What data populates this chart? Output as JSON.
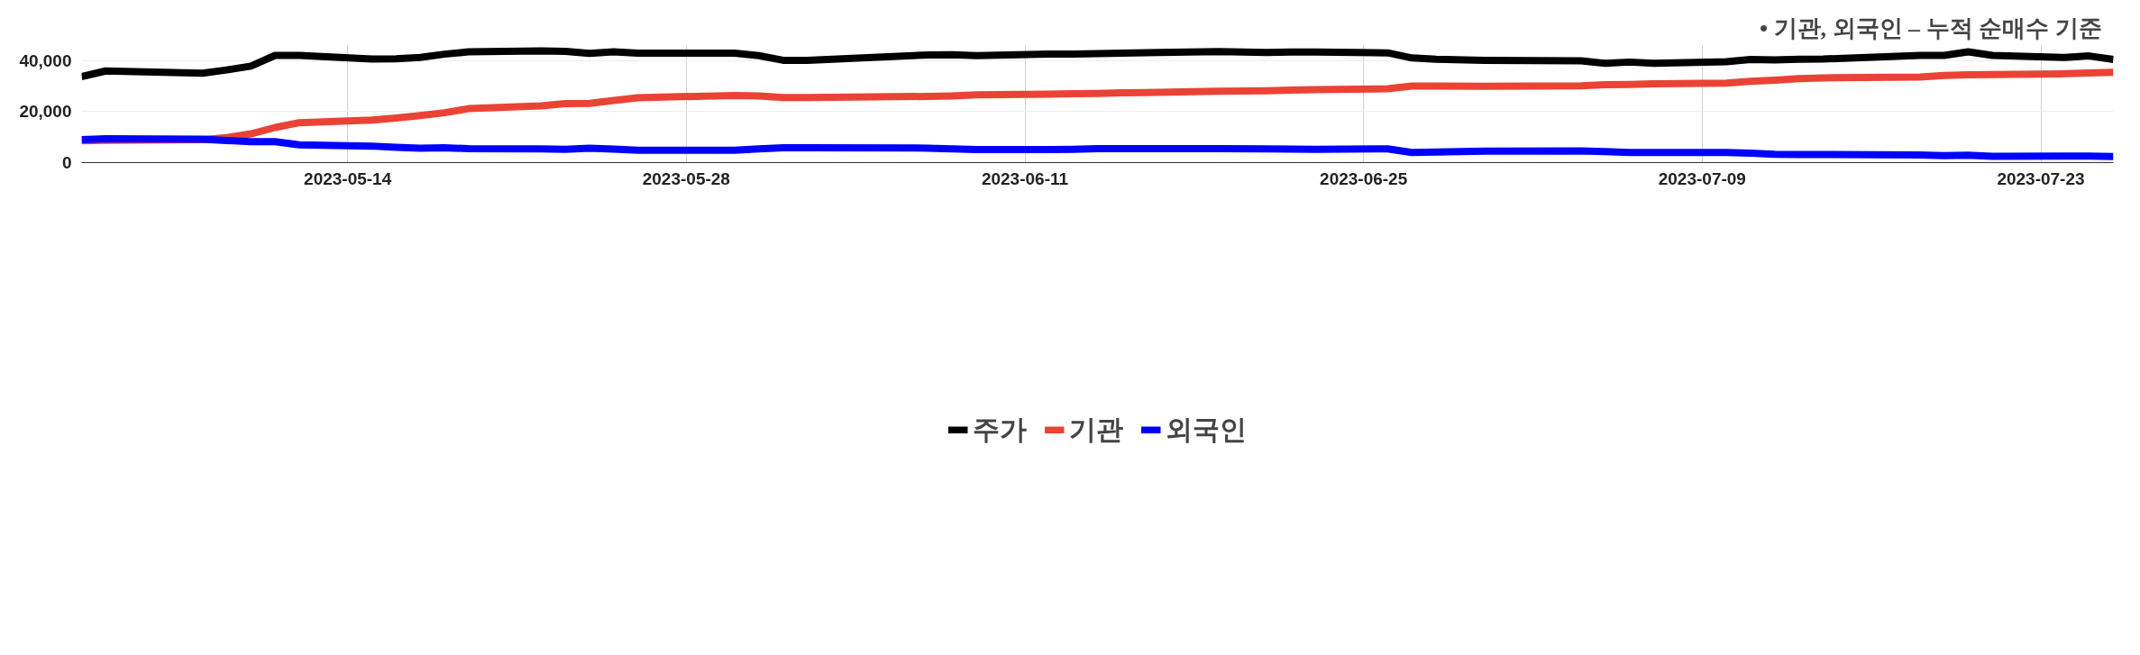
{
  "chart_data": {
    "type": "line",
    "annotations": [
      "•   기관, 외국인 – 누적 순매수 기준"
    ],
    "x": [
      "2023-05-03",
      "2023-05-04",
      "2023-05-08",
      "2023-05-09",
      "2023-05-10",
      "2023-05-11",
      "2023-05-12",
      "2023-05-15",
      "2023-05-16",
      "2023-05-17",
      "2023-05-18",
      "2023-05-19",
      "2023-05-22",
      "2023-05-23",
      "2023-05-24",
      "2023-05-25",
      "2023-05-26",
      "2023-05-30",
      "2023-05-31",
      "2023-06-01",
      "2023-06-02",
      "2023-06-07",
      "2023-06-08",
      "2023-06-09",
      "2023-06-12",
      "2023-06-13",
      "2023-06-14",
      "2023-06-15",
      "2023-06-19",
      "2023-06-21",
      "2023-06-22",
      "2023-06-23",
      "2023-06-26",
      "2023-06-27",
      "2023-06-28",
      "2023-06-30",
      "2023-07-04",
      "2023-07-05",
      "2023-07-06",
      "2023-07-07",
      "2023-07-10",
      "2023-07-11",
      "2023-07-12",
      "2023-07-13",
      "2023-07-14",
      "2023-07-18",
      "2023-07-19",
      "2023-07-20",
      "2023-07-21",
      "2023-07-24",
      "2023-07-25",
      "2023-07-26"
    ],
    "series": [
      {
        "name": "주가",
        "color": "#000000",
        "values": [
          33800,
          36000,
          35100,
          36400,
          37900,
          42100,
          42100,
          40700,
          40800,
          41300,
          42600,
          43500,
          43900,
          43700,
          42900,
          43500,
          43000,
          43000,
          42000,
          40200,
          40200,
          42300,
          42400,
          42000,
          42600,
          42600,
          42800,
          43000,
          43600,
          43300,
          43400,
          43400,
          43100,
          41100,
          40600,
          40200,
          40000,
          39000,
          39500,
          39000,
          39600,
          40500,
          40300,
          40600,
          40700,
          42100,
          42100,
          43500,
          42100,
          41300,
          41900,
          40500
        ]
      },
      {
        "name": "기관",
        "color": "#ea4335",
        "values": [
          8600,
          8800,
          9000,
          9800,
          11300,
          13800,
          15700,
          16700,
          17500,
          18500,
          19600,
          21200,
          22300,
          23200,
          23300,
          24400,
          25500,
          26400,
          26200,
          25600,
          25600,
          26000,
          26200,
          26600,
          26900,
          27100,
          27200,
          27400,
          28000,
          28200,
          28500,
          28700,
          29000,
          30100,
          30100,
          30000,
          30200,
          30600,
          30700,
          31000,
          31200,
          31900,
          32400,
          33000,
          33300,
          33600,
          34200,
          34500,
          34600,
          34900,
          35200,
          35500
        ]
      },
      {
        "name": "외국인",
        "color": "#0000ff",
        "values": [
          9000,
          9400,
          9200,
          8700,
          8200,
          8200,
          7000,
          6500,
          6000,
          5700,
          5800,
          5500,
          5400,
          5200,
          5700,
          5300,
          4900,
          4900,
          5400,
          5800,
          5800,
          5700,
          5400,
          5100,
          5100,
          5200,
          5500,
          5500,
          5500,
          5400,
          5300,
          5200,
          5400,
          4000,
          4200,
          4500,
          4600,
          4300,
          4000,
          4000,
          4000,
          3700,
          3300,
          3200,
          3200,
          3000,
          2700,
          2900,
          2500,
          2600,
          2600,
          2400
        ]
      }
    ],
    "xlim": [
      "2023-05-03",
      "2023-07-26"
    ],
    "xticks": [
      "2023-05-14",
      "2023-05-28",
      "2023-06-11",
      "2023-06-25",
      "2023-07-09",
      "2023-07-23"
    ],
    "ylim": [
      0,
      46000
    ],
    "yticks": [
      0,
      {
        "value": 20000,
        "label": "20,000"
      },
      {
        "value": 40000,
        "label": "40,000"
      }
    ],
    "grid": true,
    "legend": "bottom",
    "marker": "none",
    "line_style": "solid"
  }
}
